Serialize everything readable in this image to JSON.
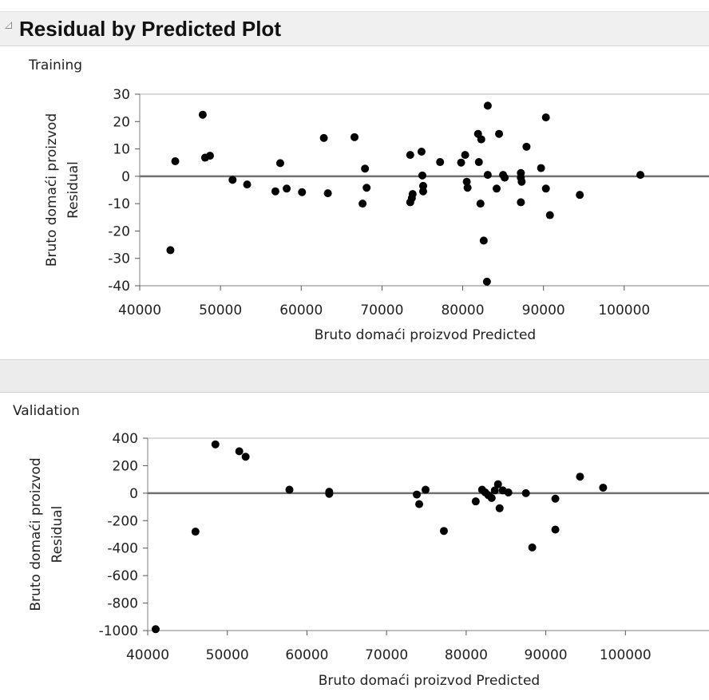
{
  "report": {
    "title": "Residual by Predicted Plot"
  },
  "chart_data": [
    {
      "type": "scatter",
      "panel": "Training",
      "xlabel": "Bruto domaći proizvod Predicted",
      "ylabel_lines": [
        "Bruto domaći proizvod",
        "Residual"
      ],
      "xlim": [
        40000,
        110500
      ],
      "ylim": [
        -40,
        30
      ],
      "xticks": [
        40000,
        50000,
        60000,
        70000,
        80000,
        90000,
        100000
      ],
      "yticks": [
        30,
        20,
        10,
        0,
        -10,
        -20,
        -30,
        -40
      ],
      "reference_line": 0,
      "points": [
        {
          "x": 43800,
          "y": -27
        },
        {
          "x": 44400,
          "y": 5.5
        },
        {
          "x": 47800,
          "y": 22.5
        },
        {
          "x": 48100,
          "y": 6.8
        },
        {
          "x": 48700,
          "y": 7.5
        },
        {
          "x": 51500,
          "y": -1.3
        },
        {
          "x": 53300,
          "y": -3
        },
        {
          "x": 56800,
          "y": -5.5
        },
        {
          "x": 57400,
          "y": 4.8
        },
        {
          "x": 58200,
          "y": -4.5
        },
        {
          "x": 60100,
          "y": -5.8
        },
        {
          "x": 62800,
          "y": 14
        },
        {
          "x": 63300,
          "y": -6.2
        },
        {
          "x": 66600,
          "y": 14.3
        },
        {
          "x": 67600,
          "y": -10
        },
        {
          "x": 67900,
          "y": 2.8
        },
        {
          "x": 68100,
          "y": -4.2
        },
        {
          "x": 73500,
          "y": 7.8
        },
        {
          "x": 73500,
          "y": -9.5
        },
        {
          "x": 73700,
          "y": -8
        },
        {
          "x": 73800,
          "y": -6.5
        },
        {
          "x": 74900,
          "y": 9
        },
        {
          "x": 75000,
          "y": 0.3
        },
        {
          "x": 75100,
          "y": -3.5
        },
        {
          "x": 75100,
          "y": -5.5
        },
        {
          "x": 77200,
          "y": 5.2
        },
        {
          "x": 79800,
          "y": 5
        },
        {
          "x": 80300,
          "y": 7.8
        },
        {
          "x": 80500,
          "y": -2
        },
        {
          "x": 80600,
          "y": -4.2
        },
        {
          "x": 81900,
          "y": 15.5
        },
        {
          "x": 82000,
          "y": 5.2
        },
        {
          "x": 82200,
          "y": -10
        },
        {
          "x": 82300,
          "y": 13.5
        },
        {
          "x": 82600,
          "y": -23.5
        },
        {
          "x": 83100,
          "y": 25.8
        },
        {
          "x": 83100,
          "y": 0.5
        },
        {
          "x": 83000,
          "y": -38.5
        },
        {
          "x": 84200,
          "y": -4.5
        },
        {
          "x": 84500,
          "y": 15.5
        },
        {
          "x": 85000,
          "y": 0.5
        },
        {
          "x": 85200,
          "y": -0.5
        },
        {
          "x": 87200,
          "y": 1.2
        },
        {
          "x": 87200,
          "y": -0.5
        },
        {
          "x": 87300,
          "y": -2
        },
        {
          "x": 87200,
          "y": -9.5
        },
        {
          "x": 87900,
          "y": 10.8
        },
        {
          "x": 89700,
          "y": 3
        },
        {
          "x": 90300,
          "y": 21.5
        },
        {
          "x": 90300,
          "y": -4.5
        },
        {
          "x": 90800,
          "y": -14.2
        },
        {
          "x": 94500,
          "y": -6.8
        },
        {
          "x": 102000,
          "y": 0.5
        }
      ]
    },
    {
      "type": "scatter",
      "panel": "Validation",
      "xlabel": "Bruto domaći proizvod Predicted",
      "ylabel_lines": [
        "Bruto domaći proizvod",
        "Residual"
      ],
      "xlim": [
        40000,
        110500
      ],
      "ylim": [
        -1000,
        400
      ],
      "xticks": [
        40000,
        50000,
        60000,
        70000,
        80000,
        90000,
        100000
      ],
      "yticks": [
        400,
        200,
        0,
        -200,
        -400,
        -600,
        -800,
        -1000
      ],
      "reference_line": 0,
      "points": [
        {
          "x": 41000,
          "y": -990
        },
        {
          "x": 46000,
          "y": -280
        },
        {
          "x": 48500,
          "y": 355
        },
        {
          "x": 51500,
          "y": 305
        },
        {
          "x": 52300,
          "y": 265
        },
        {
          "x": 57800,
          "y": 25
        },
        {
          "x": 62800,
          "y": 10
        },
        {
          "x": 62800,
          "y": -5
        },
        {
          "x": 73800,
          "y": -10
        },
        {
          "x": 74100,
          "y": -80
        },
        {
          "x": 74900,
          "y": 25
        },
        {
          "x": 77200,
          "y": -275
        },
        {
          "x": 81200,
          "y": -60
        },
        {
          "x": 82000,
          "y": 25
        },
        {
          "x": 82400,
          "y": 5
        },
        {
          "x": 82800,
          "y": -15
        },
        {
          "x": 83200,
          "y": -35
        },
        {
          "x": 83600,
          "y": 20
        },
        {
          "x": 84000,
          "y": 65
        },
        {
          "x": 84200,
          "y": -110
        },
        {
          "x": 84600,
          "y": 20
        },
        {
          "x": 85300,
          "y": 5
        },
        {
          "x": 87500,
          "y": 0
        },
        {
          "x": 88300,
          "y": -395
        },
        {
          "x": 91200,
          "y": -40
        },
        {
          "x": 91200,
          "y": -265
        },
        {
          "x": 94300,
          "y": 120
        },
        {
          "x": 97200,
          "y": 40
        }
      ]
    }
  ]
}
